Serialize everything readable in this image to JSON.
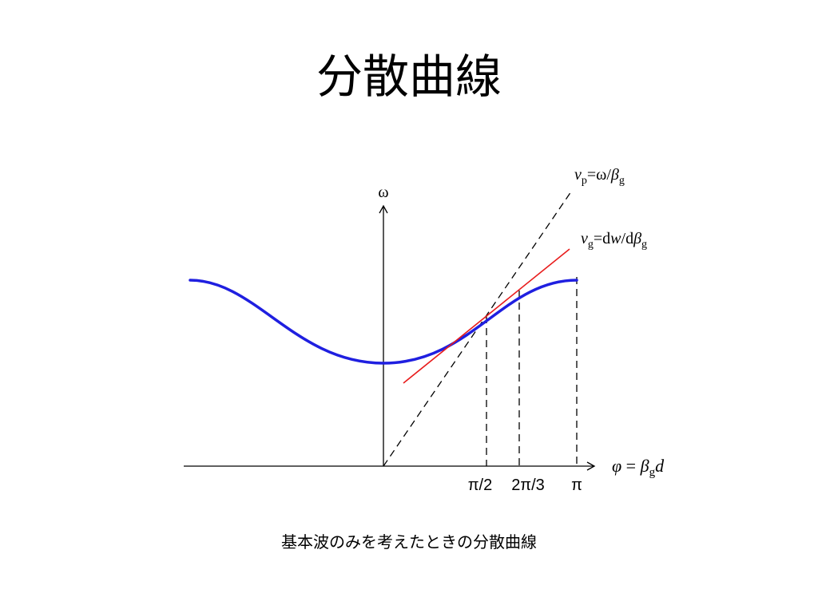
{
  "slide": {
    "title": "分散曲線",
    "caption": "基本波のみを考えたときの分散曲線"
  },
  "axes": {
    "y_label": "ω",
    "x_label": {
      "phi": "φ",
      "equals": " = ",
      "beta": "β",
      "sub": "g",
      "d": "d"
    },
    "x_ticks": [
      "π/2",
      "2π/3",
      "π"
    ]
  },
  "annotations": {
    "vp": {
      "v": "v",
      "sub": "p",
      "rest": "=ω/",
      "beta": "β",
      "beta_sub": "g"
    },
    "vg": {
      "v": "v",
      "sub": "g",
      "rest1": "=d",
      "w": "w",
      "rest2": "/d",
      "beta": "β",
      "beta_sub": "g"
    }
  },
  "colors": {
    "dispersion_curve": "#1f1fe0",
    "tangent_line": "#e81c1c",
    "axes": "#000000",
    "guides": "#000000"
  }
}
